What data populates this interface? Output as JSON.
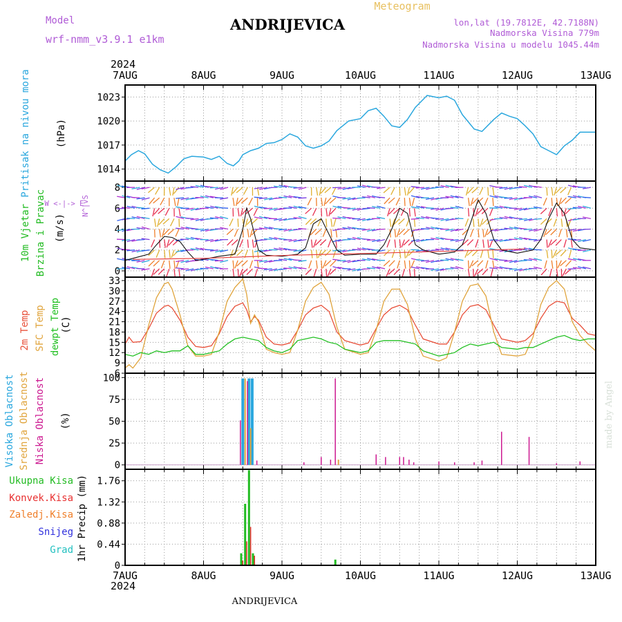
{
  "header": {
    "model_label": "Model",
    "model_name": "wrf-nmm_v3.9.1 e1km",
    "station": "ANDRIJEVICA",
    "meteogram_label": "Meteogram",
    "lonlat": "lon,lat (19.7812E, 42.7188N)",
    "elevation": "Nadmorska Visina 779m",
    "model_elevation": "Nadmorska Visina u modelu 1045.44m"
  },
  "footer": {
    "station": "ANDRIJEVICA",
    "credit": "made by Angel"
  },
  "colors": {
    "pressure": "#2aa7de",
    "wind_label": "#22bb22",
    "temp2m": "#e8503a",
    "sfc_temp": "#e0a43c",
    "dewpoint": "#22c022",
    "high_cloud": "#2aa7de",
    "mid_cloud": "#e0a43c",
    "low_cloud": "#cc1890",
    "total_precip": "#22bb22",
    "conv_precip": "#e83030",
    "freezing_precip": "#ef7f2a",
    "snow": "#3030dd",
    "hail": "#22c0c0",
    "header_purple": "#b05cd6",
    "meteogram": "#e8c060"
  },
  "chart_data": [
    {
      "type": "line",
      "panel": "pressure",
      "ylabel": [
        "Pritisak na nivou mora",
        "(hPa)"
      ],
      "yticks": [
        1014,
        1017,
        1020,
        1023
      ],
      "ylim": [
        1012.5,
        1024.5
      ],
      "x_unit": "days from 7AUG 2024 00UTC",
      "series": [
        {
          "x": [
            0,
            0.08,
            0.17,
            0.25,
            0.35,
            0.45,
            0.55,
            0.65,
            0.75,
            0.85,
            1.0,
            1.1,
            1.2,
            1.3,
            1.38,
            1.45,
            1.5,
            1.6,
            1.7,
            1.8,
            1.9,
            2.0,
            2.1,
            2.2,
            2.3,
            2.4,
            2.5,
            2.6,
            2.7,
            2.85,
            3.0,
            3.1,
            3.2,
            3.3,
            3.4,
            3.5,
            3.6,
            3.7,
            3.85,
            4.0,
            4.1,
            4.2,
            4.3,
            4.45,
            4.55,
            4.7,
            4.8,
            4.9,
            5.0,
            5.1,
            5.2,
            5.3,
            5.4,
            5.5,
            5.6,
            5.7,
            5.8,
            5.95,
            6.0
          ],
          "y": [
            1015.0,
            1015.8,
            1016.3,
            1015.9,
            1014.6,
            1013.9,
            1013.5,
            1014.3,
            1015.3,
            1015.6,
            1015.5,
            1015.2,
            1015.6,
            1014.7,
            1014.4,
            1015.0,
            1015.8,
            1016.3,
            1016.6,
            1017.2,
            1017.3,
            1017.7,
            1018.4,
            1018.0,
            1016.9,
            1016.6,
            1016.9,
            1017.5,
            1018.8,
            1020.0,
            1020.3,
            1021.3,
            1021.6,
            1020.6,
            1019.4,
            1019.2,
            1020.2,
            1021.7,
            1023.2,
            1022.9,
            1023.1,
            1022.6,
            1020.8,
            1019.0,
            1018.7,
            1020.2,
            1021.0,
            1020.6,
            1020.3,
            1019.4,
            1018.4,
            1016.8,
            1016.3,
            1015.8,
            1016.9,
            1017.6,
            1018.6,
            1018.6,
            1018.6
          ]
        }
      ]
    },
    {
      "type": "line",
      "panel": "wind",
      "ylabel": [
        "10m Vjetar",
        "Brzina i Pravac",
        "(m/s)"
      ],
      "compass": "W <-|-> E",
      "compass_v": "N^|vS",
      "yticks": [
        0,
        2,
        4,
        6,
        8
      ],
      "ylim": [
        -0.6,
        8.6
      ],
      "x_unit": "days from 7AUG 2024 00UTC",
      "series": [
        {
          "x": [
            0,
            0.1,
            0.2,
            0.3,
            0.4,
            0.5,
            0.6,
            0.7,
            0.8,
            0.9,
            1.0,
            1.2,
            1.4,
            1.5,
            1.55,
            1.6,
            1.7,
            1.8,
            2.0,
            2.2,
            2.3,
            2.4,
            2.5,
            2.6,
            2.7,
            2.8,
            3.0,
            3.2,
            3.3,
            3.4,
            3.5,
            3.6,
            3.7,
            3.8,
            4.0,
            4.2,
            4.3,
            4.4,
            4.5,
            4.6,
            4.7,
            4.8,
            5.0,
            5.2,
            5.3,
            5.4,
            5.5,
            5.6,
            5.7,
            5.8,
            6.0
          ],
          "y": [
            1.0,
            1.2,
            1.4,
            1.6,
            2.5,
            3.3,
            3.2,
            2.8,
            1.8,
            1.0,
            1.1,
            1.4,
            1.6,
            4.0,
            6.0,
            5.0,
            2.0,
            1.5,
            1.4,
            1.6,
            2.2,
            4.5,
            5.0,
            3.5,
            2.0,
            1.5,
            1.6,
            1.6,
            2.5,
            4.0,
            6.0,
            5.5,
            2.5,
            2.0,
            1.6,
            1.8,
            2.5,
            4.5,
            6.8,
            5.5,
            3.0,
            2.0,
            1.7,
            2.0,
            3.0,
            5.0,
            6.5,
            5.5,
            3.0,
            2.2,
            2.0
          ]
        },
        {
          "x": [
            0.1,
            1.0,
            2.1,
            3.2,
            4.2,
            5.1
          ],
          "y": [
            1.1,
            1.2,
            1.5,
            1.7,
            1.9,
            2.1
          ]
        }
      ]
    },
    {
      "type": "line",
      "panel": "temperature",
      "ylabel": [
        "2m Temp",
        "SFC Temp",
        "dewpt Temp",
        "(C)"
      ],
      "yticks": [
        6,
        9,
        12,
        15,
        18,
        21,
        24,
        27,
        30,
        33
      ],
      "ylim": [
        6,
        34
      ],
      "x_unit": "days from 7AUG 2024 00UTC",
      "series": [
        {
          "name": "2m Temp",
          "x": [
            0,
            0.05,
            0.1,
            0.2,
            0.3,
            0.4,
            0.5,
            0.55,
            0.6,
            0.7,
            0.8,
            0.9,
            1.0,
            1.1,
            1.2,
            1.3,
            1.4,
            1.5,
            1.55,
            1.6,
            1.65,
            1.7,
            1.8,
            1.9,
            2.0,
            2.1,
            2.2,
            2.3,
            2.4,
            2.5,
            2.6,
            2.7,
            2.8,
            3.0,
            3.1,
            3.2,
            3.3,
            3.4,
            3.5,
            3.6,
            3.7,
            3.8,
            4.0,
            4.1,
            4.2,
            4.3,
            4.4,
            4.5,
            4.6,
            4.7,
            4.8,
            5.0,
            5.1,
            5.2,
            5.3,
            5.4,
            5.5,
            5.6,
            5.7,
            5.8,
            5.9,
            6.0
          ],
          "y": [
            14.5,
            16.5,
            15.0,
            15.2,
            19.0,
            23.5,
            25.5,
            25.8,
            25.0,
            21.5,
            16.5,
            13.8,
            13.5,
            14.0,
            17.5,
            22.5,
            25.5,
            26.5,
            24.5,
            21.0,
            22.5,
            21.5,
            16.5,
            14.5,
            14.2,
            14.8,
            18.5,
            23.0,
            25.0,
            25.8,
            24.0,
            18.0,
            15.5,
            14.2,
            14.8,
            19.0,
            23.0,
            25.0,
            25.8,
            24.5,
            20.0,
            16.0,
            14.5,
            14.5,
            18.0,
            23.0,
            25.5,
            26.0,
            24.5,
            20.0,
            16.0,
            15.0,
            15.5,
            17.5,
            22.0,
            25.5,
            27.0,
            26.5,
            22.0,
            20.0,
            17.5,
            17.0
          ]
        },
        {
          "name": "SFC Temp",
          "x": [
            0,
            0.05,
            0.1,
            0.2,
            0.3,
            0.4,
            0.5,
            0.55,
            0.6,
            0.7,
            0.8,
            0.9,
            1.0,
            1.1,
            1.2,
            1.3,
            1.4,
            1.5,
            1.55,
            1.6,
            1.65,
            1.7,
            1.8,
            1.9,
            2.0,
            2.1,
            2.2,
            2.3,
            2.4,
            2.5,
            2.6,
            2.7,
            2.8,
            3.0,
            3.1,
            3.2,
            3.3,
            3.4,
            3.5,
            3.6,
            3.7,
            3.8,
            4.0,
            4.1,
            4.2,
            4.3,
            4.4,
            4.5,
            4.6,
            4.7,
            4.8,
            5.0,
            5.1,
            5.2,
            5.3,
            5.4,
            5.5,
            5.6,
            5.7,
            5.8,
            5.9,
            6.0
          ],
          "y": [
            7.5,
            8.5,
            7.5,
            10.5,
            20.0,
            28.0,
            32.0,
            32.5,
            30.5,
            23.0,
            14.0,
            11.0,
            11.0,
            11.5,
            18.0,
            27.0,
            31.0,
            33.5,
            29.0,
            20.5,
            23.0,
            21.0,
            13.0,
            12.0,
            11.5,
            12.0,
            18.5,
            27.0,
            31.0,
            32.5,
            29.0,
            19.5,
            13.0,
            11.5,
            12.0,
            18.5,
            27.0,
            30.5,
            30.5,
            26.0,
            16.0,
            11.0,
            9.5,
            10.5,
            18.0,
            27.0,
            31.5,
            32.0,
            28.5,
            18.0,
            11.5,
            11.0,
            11.5,
            16.5,
            26.0,
            31.0,
            33.0,
            30.5,
            21.0,
            17.0,
            14.5,
            12.5
          ]
        },
        {
          "name": "dewpt Temp",
          "x": [
            0,
            0.1,
            0.2,
            0.3,
            0.4,
            0.5,
            0.6,
            0.7,
            0.8,
            0.9,
            1.0,
            1.1,
            1.2,
            1.3,
            1.4,
            1.5,
            1.6,
            1.7,
            1.8,
            1.9,
            2.0,
            2.1,
            2.2,
            2.3,
            2.4,
            2.5,
            2.6,
            2.7,
            2.8,
            3.0,
            3.1,
            3.2,
            3.3,
            3.4,
            3.5,
            3.6,
            3.7,
            3.8,
            4.0,
            4.1,
            4.2,
            4.3,
            4.4,
            4.5,
            4.6,
            4.7,
            4.8,
            5.0,
            5.1,
            5.2,
            5.3,
            5.4,
            5.5,
            5.6,
            5.7,
            5.8,
            5.9,
            6.0
          ],
          "y": [
            11.5,
            11.0,
            12.0,
            11.5,
            12.5,
            12.0,
            12.5,
            12.5,
            14.0,
            11.5,
            11.5,
            12.0,
            12.5,
            14.5,
            16.0,
            16.5,
            16.0,
            15.5,
            13.5,
            12.5,
            12.0,
            13.0,
            15.5,
            16.0,
            16.5,
            16.0,
            15.0,
            14.5,
            13.0,
            12.0,
            12.5,
            15.0,
            15.5,
            15.5,
            15.5,
            15.0,
            14.5,
            12.5,
            11.0,
            11.5,
            12.0,
            13.5,
            14.5,
            14.0,
            14.5,
            15.0,
            13.5,
            13.0,
            13.5,
            13.5,
            14.5,
            15.5,
            16.5,
            17.0,
            16.0,
            15.5,
            16.0,
            16.0
          ]
        }
      ]
    },
    {
      "type": "bar",
      "panel": "cloud",
      "ylabel": [
        "Visoka Oblacnost",
        "Srednja Oblacnost",
        "Niska Oblacnost",
        "(%)"
      ],
      "yticks": [
        0,
        25,
        50,
        75,
        100
      ],
      "ylim": [
        -5,
        105
      ],
      "x_unit": "days from 7AUG 2024 00UTC",
      "series": [
        {
          "name": "Visoka Oblacnost",
          "x": [
            1.5,
            1.58,
            1.62
          ],
          "values": [
            99,
            99,
            99
          ]
        },
        {
          "name": "Srednja Oblacnost",
          "x": [
            1.53,
            1.6,
            2.72
          ],
          "values": [
            99,
            42,
            6
          ]
        },
        {
          "name": "Niska Oblacnost",
          "x": [
            1.47,
            1.56,
            1.68,
            2.28,
            2.5,
            2.62,
            2.68,
            3.2,
            3.32,
            3.5,
            3.55,
            3.62,
            3.68,
            4.0,
            4.2,
            4.45,
            4.55,
            4.8,
            5.15,
            5.5,
            5.8
          ],
          "values": [
            51,
            96,
            5,
            3,
            9,
            6,
            99,
            12,
            9,
            9,
            9,
            6,
            3,
            4,
            3,
            3,
            5,
            38,
            32,
            2,
            4
          ]
        }
      ]
    },
    {
      "type": "bar",
      "panel": "precipitation",
      "ylabel": [
        "1hr Precip (mm)"
      ],
      "legend": [
        "Ukupna Kisa",
        "Konvek.Kisa",
        "Zaledj.Kisa",
        "Snijeg",
        "Grad"
      ],
      "yticks": [
        0,
        0.44,
        0.88,
        1.32,
        1.76
      ],
      "ylim": [
        0,
        2.0
      ],
      "x_unit": "days from 7AUG 2024 00UTC",
      "series": [
        {
          "name": "Ukupna Kisa",
          "x": [
            1.48,
            1.53,
            1.58,
            1.63,
            2.68
          ],
          "values": [
            0.25,
            1.28,
            1.98,
            0.25,
            0.12
          ]
        },
        {
          "name": "Konvek.Kisa",
          "x": [
            1.5,
            1.55,
            1.6,
            1.65
          ],
          "values": [
            0.1,
            0.5,
            0.8,
            0.2
          ]
        }
      ]
    }
  ],
  "x_axis": {
    "day_labels": [
      "7AUG",
      "8AUG",
      "9AUG",
      "10AUG",
      "11AUG",
      "12AUG",
      "13AUG"
    ],
    "year": "2024"
  }
}
